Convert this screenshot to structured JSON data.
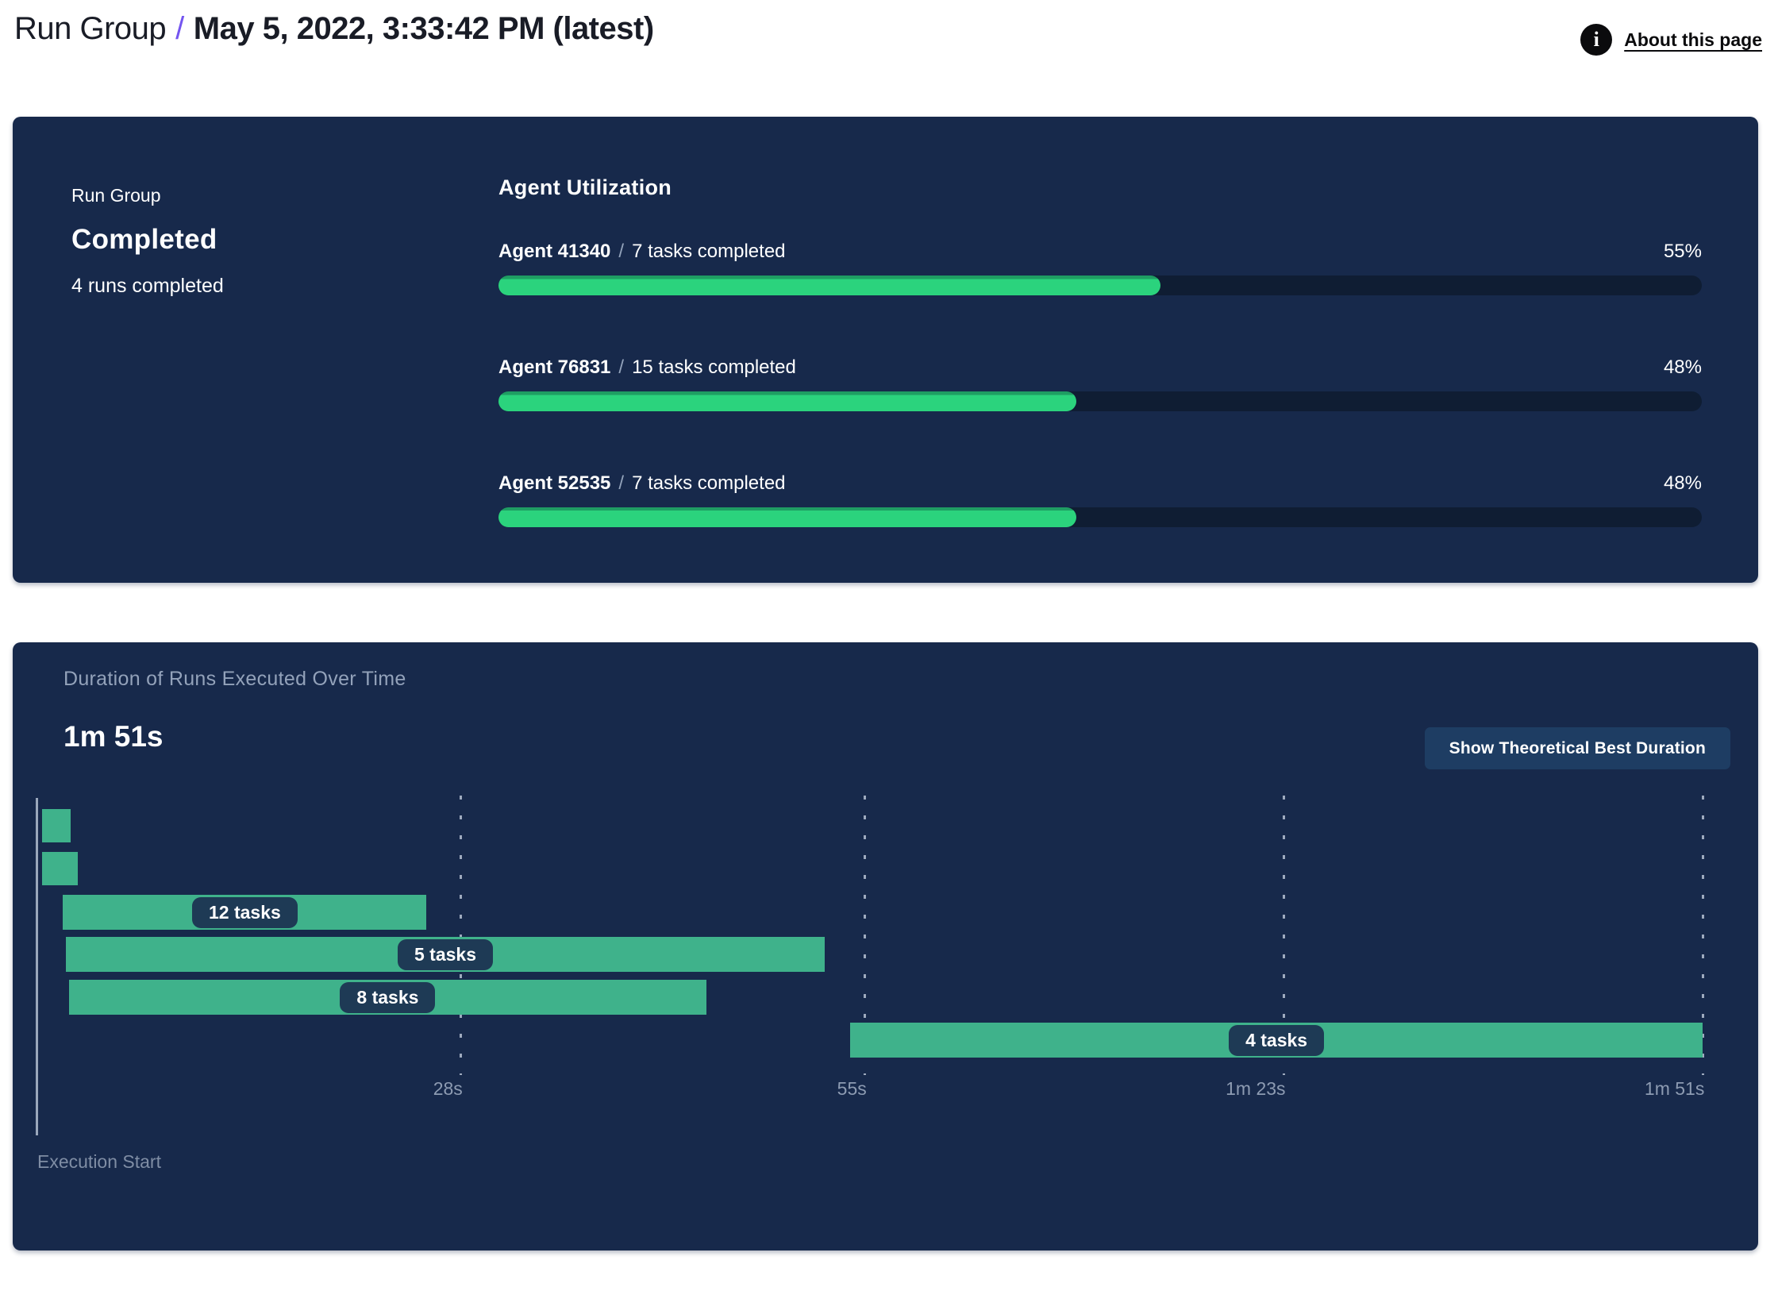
{
  "header": {
    "breadcrumb_root": "Run Group",
    "separator": "/",
    "title": "May 5, 2022, 3:33:42 PM (latest)",
    "about_link": "About this page",
    "info_icon": "i"
  },
  "summary_panel": {
    "label": "Run Group",
    "status": "Completed",
    "subtext": "4 runs completed",
    "agent_utilization": {
      "heading": "Agent Utilization",
      "separator": "/",
      "agents": [
        {
          "name": "Agent 41340",
          "tasks": "7 tasks completed",
          "percent": 55,
          "percent_label": "55%"
        },
        {
          "name": "Agent 76831",
          "tasks": "15 tasks completed",
          "percent": 48,
          "percent_label": "48%"
        },
        {
          "name": "Agent 52535",
          "tasks": "7 tasks completed",
          "percent": 48,
          "percent_label": "48%"
        }
      ]
    }
  },
  "duration_panel": {
    "title": "Duration of Runs Executed Over Time",
    "total_duration": "1m 51s",
    "button_label": "Show Theoretical Best Duration",
    "axis_label": "Execution Start"
  },
  "chart_data": {
    "type": "gantt",
    "title": "Duration of Runs Executed Over Time",
    "x_unit": "seconds",
    "xlim": [
      0,
      111
    ],
    "total_duration_s": 111,
    "ticks": [
      {
        "s": 28,
        "label": "28s"
      },
      {
        "s": 55,
        "label": "55s"
      },
      {
        "s": 83,
        "label": "1m 23s"
      },
      {
        "s": 111,
        "label": "1m 51s"
      }
    ],
    "runs": [
      {
        "start_s": 0.0,
        "end_s": 1.9,
        "label": ""
      },
      {
        "start_s": 0.0,
        "end_s": 2.4,
        "label": ""
      },
      {
        "start_s": 1.4,
        "end_s": 25.7,
        "label": "12 tasks"
      },
      {
        "start_s": 1.6,
        "end_s": 52.3,
        "label": "5 tasks"
      },
      {
        "start_s": 1.8,
        "end_s": 44.4,
        "label": "8 tasks"
      },
      {
        "start_s": 54.0,
        "end_s": 111.0,
        "label": "4 tasks"
      }
    ]
  },
  "colors": {
    "accent_purple": "#7455f0",
    "panel_bg": "#17294b",
    "utilization_fill": "#2bd37d",
    "utilization_fill_edge": "#1f9d63",
    "utilization_track": "#0f1d33",
    "gantt_bar": "#3fb28b",
    "pill_bg": "#1e3a55",
    "button_bg": "#1e3d63",
    "muted_text": "#93a2ba",
    "white_text": "#ffffff"
  }
}
